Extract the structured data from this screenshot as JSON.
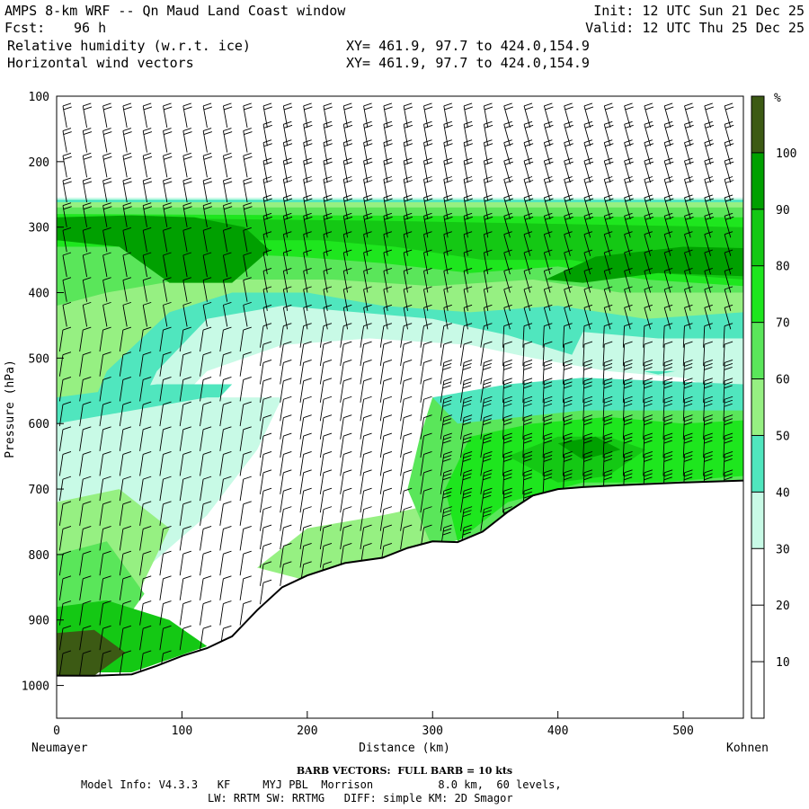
{
  "header": {
    "title": "AMPS 8-km WRF -- Qn Maud Land Coast window",
    "init": "Init: 12 UTC Sun 21 Dec 25",
    "fcst_label": "Fcst:",
    "fcst_value": "96 h",
    "valid": "Valid: 12 UTC Thu 25 Dec 25",
    "field1": "Relative humidity (w.r.t. ice)",
    "field2": "Horizontal wind vectors",
    "xy1": "XY= 461.9, 97.7 to 424.0,154.9",
    "xy2": "XY= 461.9, 97.7 to 424.0,154.9"
  },
  "footer": {
    "barb": "BARB VECTORS:  FULL BARB = 10 kts",
    "model1": "Model Info: V4.3.3   KF     MYJ PBL  Morrison          8.0 km,  60 levels,",
    "model2": "LW: RRTM SW: RRTMG   DIFF: simple KM: 2D Smagor"
  },
  "colors": {
    "c30": "#c8fae6",
    "c40": "#50e6be",
    "c50": "#96f082",
    "c60": "#5ae65a",
    "c70": "#1ee61e",
    "c80": "#14c814",
    "c90": "#00a000",
    "c100": "#005a1e",
    "c100b": "#3c5a14"
  },
  "chart_data": {
    "type": "cross-section",
    "xlabel": "Distance (km)",
    "ylabel": "Pressure (hPa)",
    "x_start_label": "Neumayer",
    "x_end_label": "Kohnen",
    "xlim": [
      0,
      548
    ],
    "ylim": [
      1050,
      100
    ],
    "x_ticks": [
      "0",
      "100",
      "200",
      "300",
      "400",
      "500"
    ],
    "x_tick_values": [
      0,
      100,
      200,
      300,
      400,
      500
    ],
    "y_ticks": [
      "100",
      "200",
      "300",
      "400",
      "500",
      "600",
      "700",
      "800",
      "900",
      "1000"
    ],
    "y_tick_values": [
      100,
      200,
      300,
      400,
      500,
      600,
      700,
      800,
      900,
      1000
    ],
    "colorbar": {
      "unit": "%",
      "labels": [
        "10",
        "20",
        "30",
        "40",
        "50",
        "60",
        "70",
        "80",
        "90",
        "100"
      ],
      "levels": [
        10,
        20,
        30,
        40,
        50,
        60,
        70,
        80,
        90,
        100
      ]
    },
    "terrain_surface_pressure": {
      "x": [
        0,
        30,
        60,
        80,
        100,
        120,
        140,
        160,
        180,
        200,
        230,
        260,
        280,
        300,
        320,
        340,
        360,
        380,
        400,
        420,
        450,
        500,
        548
      ],
      "p": [
        985,
        985,
        983,
        970,
        955,
        943,
        925,
        885,
        850,
        832,
        813,
        805,
        790,
        780,
        781,
        765,
        735,
        710,
        700,
        697,
        694,
        690,
        687
      ]
    },
    "rh_bands": [
      {
        "level": 30,
        "p_top": [
          255,
          255,
          255,
          255,
          258,
          258,
          262,
          262
        ],
        "p_bottom": [
          900,
          760,
          520,
          470,
          500,
          560,
          560,
          560
        ]
      },
      {
        "level": 60,
        "p_top": [
          260,
          270,
          285,
          290,
          290,
          290,
          290,
          290
        ],
        "p_bottom": [
          870,
          700,
          440,
          420,
          460,
          520,
          510,
          500
        ]
      },
      {
        "level": 90,
        "p_top": [
          280,
          285,
          310,
          320,
          330,
          340,
          345,
          345
        ],
        "p_bottom": [
          310,
          390,
          340,
          345,
          350,
          360,
          370,
          375
        ]
      }
    ]
  }
}
